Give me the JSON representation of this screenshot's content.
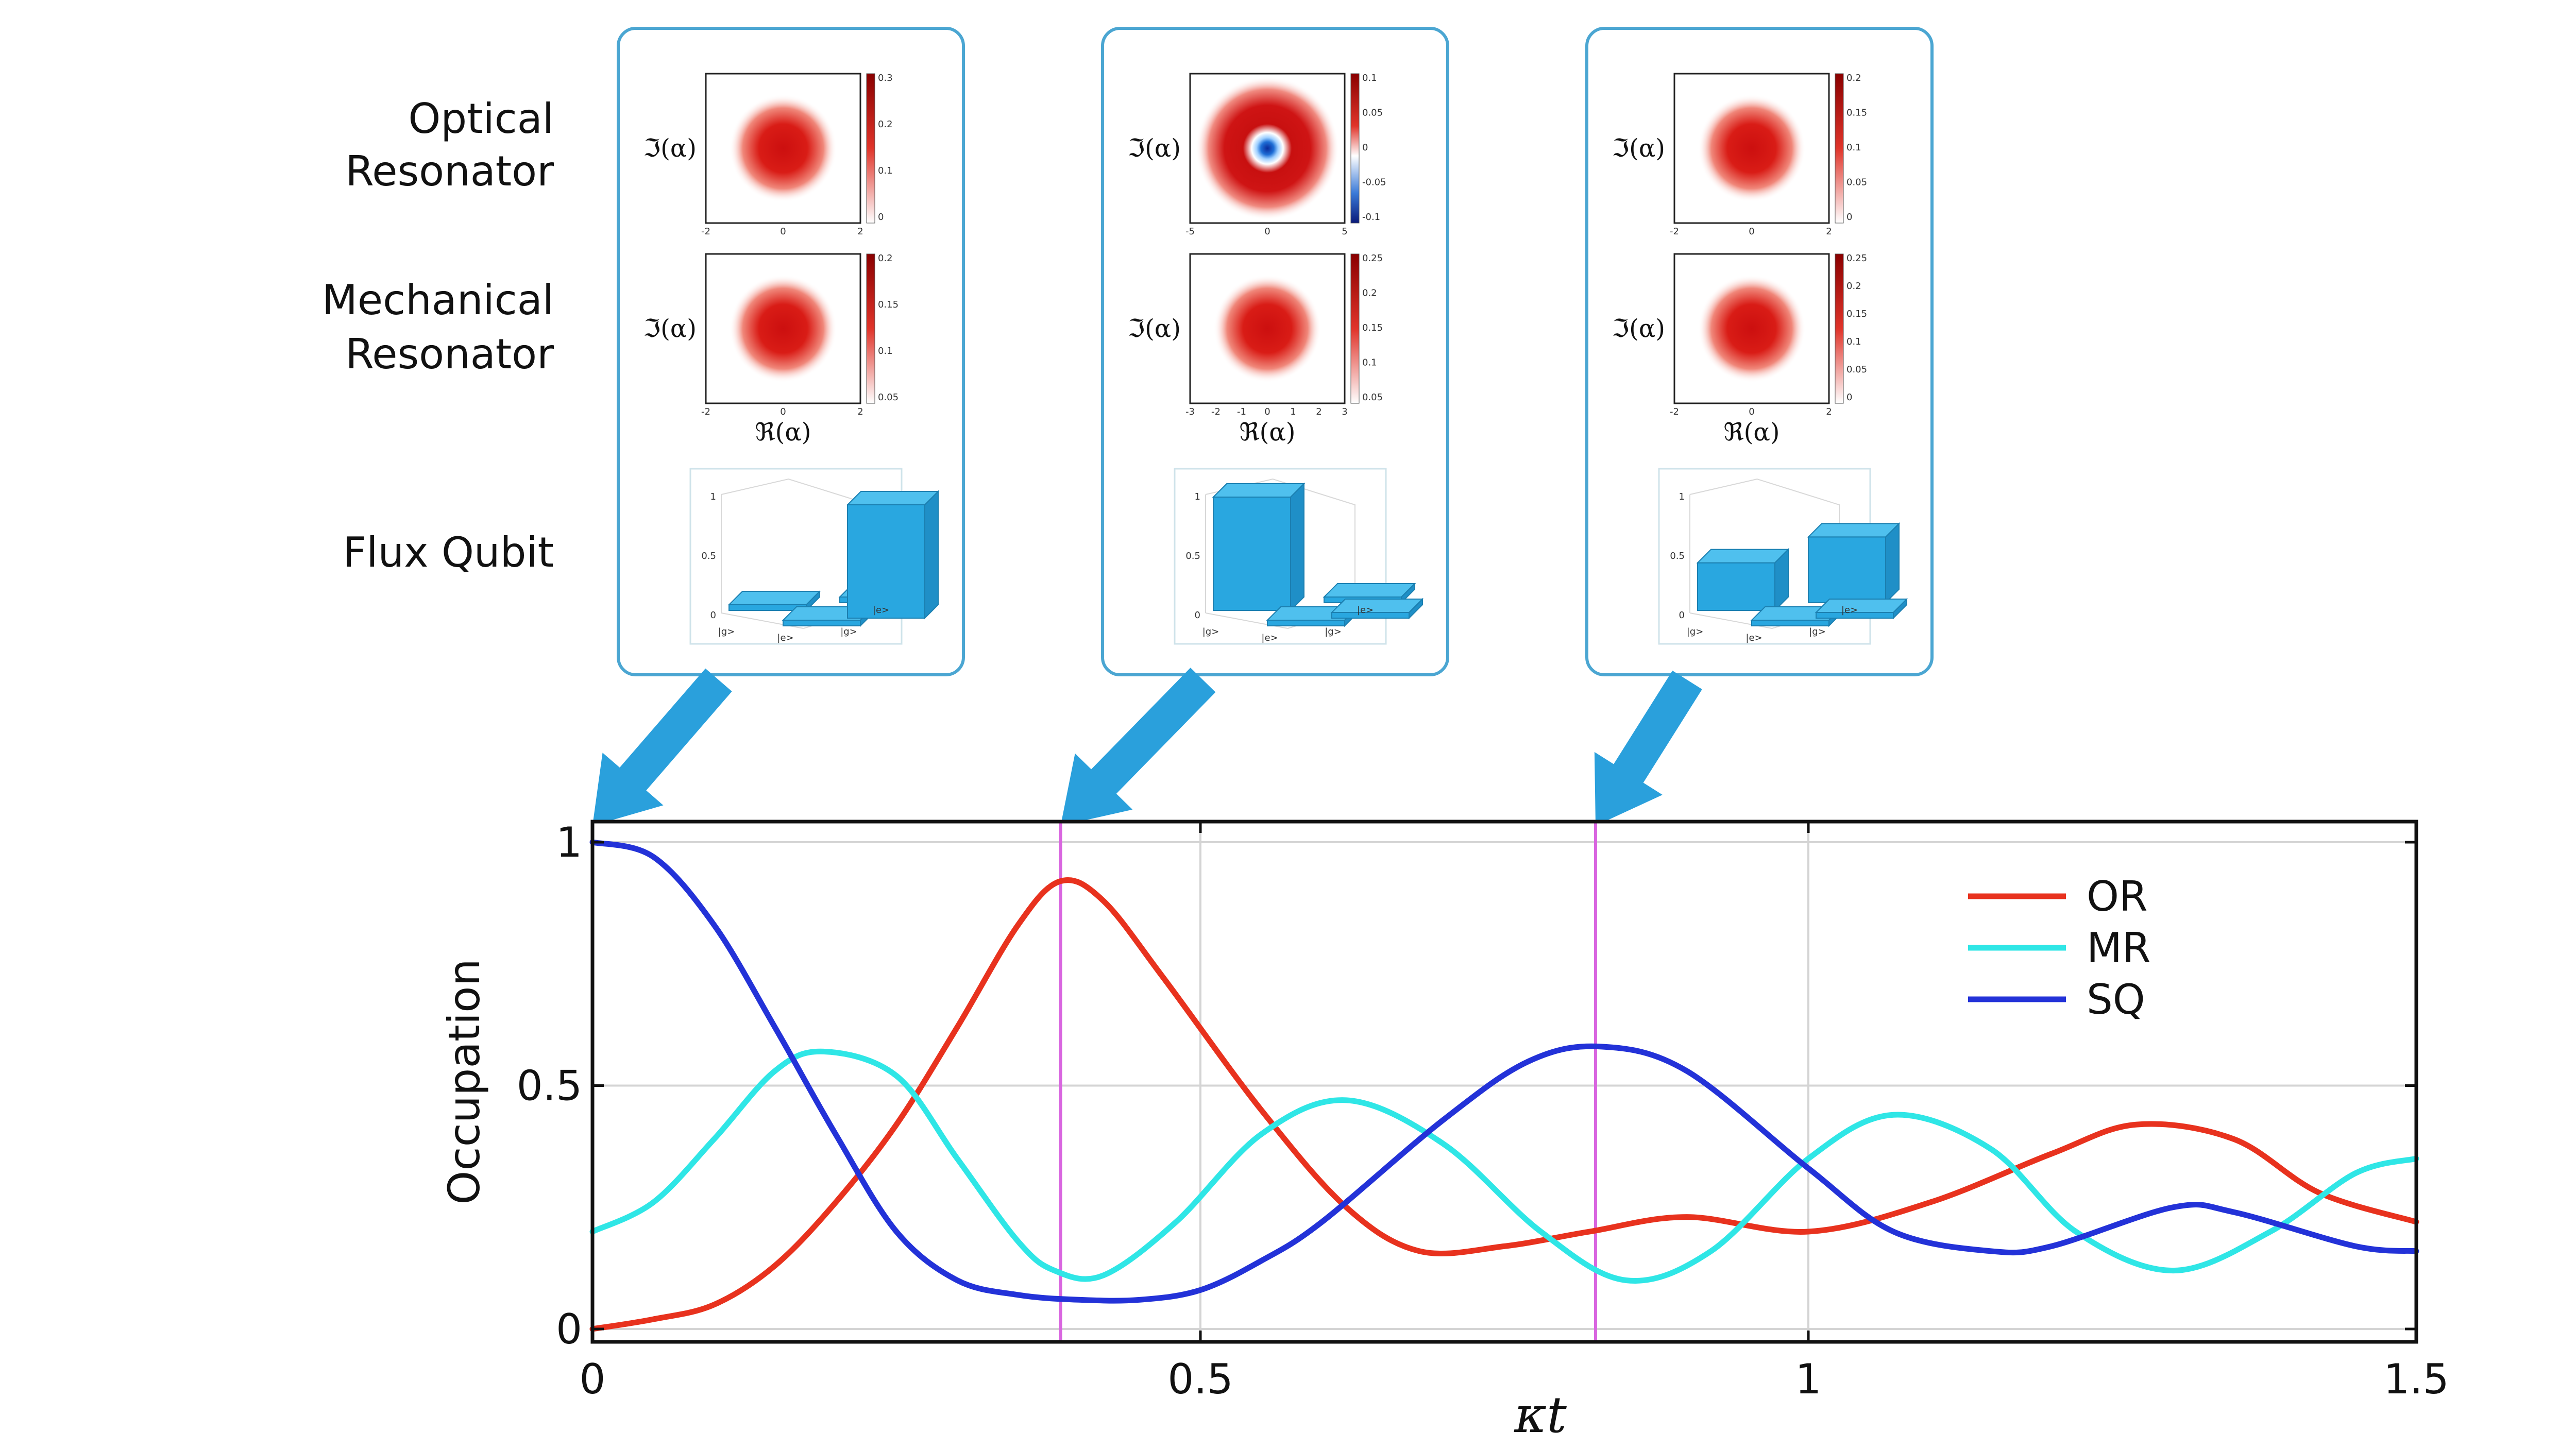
{
  "row_labels": {
    "optical": [
      "Optical",
      "Resonator"
    ],
    "mechanical": [
      "Mechanical",
      "Resonator"
    ],
    "flux": "Flux Qubit"
  },
  "inset_axis_labels": {
    "im": "ℑ(α)",
    "re": "ℜ(α)"
  },
  "panels": [
    {
      "optical": {
        "ticks_x": [
          "-2",
          "0",
          "2"
        ],
        "colorbar_ticks": [
          "0.3",
          "0.2",
          "0.1",
          "0"
        ]
      },
      "mechanical": {
        "ticks_x": [
          "-2",
          "0",
          "2"
        ],
        "colorbar_ticks": [
          "0.2",
          "0.15",
          "0.1",
          "0.05"
        ]
      },
      "qubit": {
        "bars": [
          0.05,
          0.05,
          0.05,
          1.0
        ],
        "axis_ticks": [
          "1",
          "0.5",
          "0"
        ],
        "state_labels": [
          "|g>",
          "|e>",
          "|g>",
          "|e>"
        ]
      }
    },
    {
      "optical": {
        "ticks_x": [
          "-5",
          "0",
          "5"
        ],
        "colorbar_ticks": [
          "0.1",
          "0.05",
          "0",
          "-0.05",
          "-0.1"
        ]
      },
      "mechanical": {
        "ticks_x": [
          "-3",
          "-2",
          "-1",
          "0",
          "1",
          "2",
          "3"
        ],
        "colorbar_ticks": [
          "0.25",
          "0.2",
          "0.15",
          "0.1",
          "0.05"
        ]
      },
      "qubit": {
        "bars": [
          1.0,
          0.05,
          0.05,
          0.05
        ],
        "axis_ticks": [
          "1",
          "0.5",
          "0"
        ],
        "state_labels": [
          "|g>",
          "|e>",
          "|g>",
          "|e>"
        ]
      }
    },
    {
      "optical": {
        "ticks_x": [
          "-2",
          "0",
          "2"
        ],
        "colorbar_ticks": [
          "0.2",
          "0.15",
          "0.1",
          "0.05",
          "0"
        ]
      },
      "mechanical": {
        "ticks_x": [
          "-2",
          "0",
          "2"
        ],
        "colorbar_ticks": [
          "0.25",
          "0.2",
          "0.15",
          "0.1",
          "0.05",
          "0"
        ]
      },
      "qubit": {
        "bars": [
          0.42,
          0.05,
          0.58,
          0.05
        ],
        "axis_ticks": [
          "1",
          "0.5",
          "0"
        ],
        "state_labels": [
          "|g>",
          "|e>",
          "|g>",
          "|e>"
        ]
      }
    }
  ],
  "colors": {
    "or": "#e8321e",
    "mr": "#2fe6e6",
    "sq": "#2332d8",
    "marker": "#d966e0",
    "panel_border": "#4ba6d2",
    "arrow": "#2aa0dc",
    "bar": "#29a7e0"
  },
  "chart_data": {
    "type": "line",
    "xlabel": "κt",
    "ylabel": "Occupation",
    "xlim": [
      0,
      1.5
    ],
    "ylim": [
      0,
      1
    ],
    "x_ticks": [
      "0",
      "0.5",
      "1",
      "1.5"
    ],
    "y_ticks": [
      "0",
      "0.5",
      "1"
    ],
    "grid": true,
    "legend_position": "top-right",
    "marker_times": [
      0.385,
      0.825
    ],
    "series": [
      {
        "name": "OR",
        "x": [
          0,
          0.05,
          0.1,
          0.15,
          0.2,
          0.25,
          0.3,
          0.35,
          0.385,
          0.42,
          0.47,
          0.55,
          0.62,
          0.68,
          0.75,
          0.82,
          0.9,
          1.0,
          1.1,
          1.2,
          1.27,
          1.35,
          1.42,
          1.5
        ],
        "values": [
          0,
          0.02,
          0.05,
          0.13,
          0.26,
          0.42,
          0.62,
          0.83,
          0.92,
          0.88,
          0.72,
          0.45,
          0.25,
          0.16,
          0.17,
          0.2,
          0.23,
          0.2,
          0.26,
          0.36,
          0.42,
          0.39,
          0.28,
          0.22
        ]
      },
      {
        "name": "MR",
        "x": [
          0,
          0.05,
          0.1,
          0.15,
          0.19,
          0.25,
          0.3,
          0.35,
          0.38,
          0.42,
          0.48,
          0.55,
          0.62,
          0.7,
          0.78,
          0.85,
          0.92,
          1.0,
          1.07,
          1.15,
          1.22,
          1.3,
          1.38,
          1.45,
          1.5
        ],
        "values": [
          0.2,
          0.26,
          0.39,
          0.53,
          0.57,
          0.52,
          0.35,
          0.18,
          0.12,
          0.11,
          0.22,
          0.4,
          0.47,
          0.38,
          0.2,
          0.1,
          0.16,
          0.35,
          0.44,
          0.37,
          0.2,
          0.12,
          0.2,
          0.32,
          0.35
        ]
      },
      {
        "name": "SQ",
        "x": [
          0,
          0.05,
          0.1,
          0.15,
          0.2,
          0.25,
          0.3,
          0.35,
          0.4,
          0.45,
          0.5,
          0.55,
          0.6,
          0.7,
          0.77,
          0.83,
          0.9,
          1.0,
          1.07,
          1.15,
          1.2,
          1.3,
          1.35,
          1.45,
          1.5
        ],
        "values": [
          1.0,
          0.97,
          0.83,
          0.62,
          0.4,
          0.2,
          0.1,
          0.07,
          0.06,
          0.06,
          0.08,
          0.14,
          0.22,
          0.43,
          0.55,
          0.58,
          0.53,
          0.33,
          0.2,
          0.16,
          0.17,
          0.25,
          0.24,
          0.17,
          0.16
        ]
      }
    ]
  }
}
